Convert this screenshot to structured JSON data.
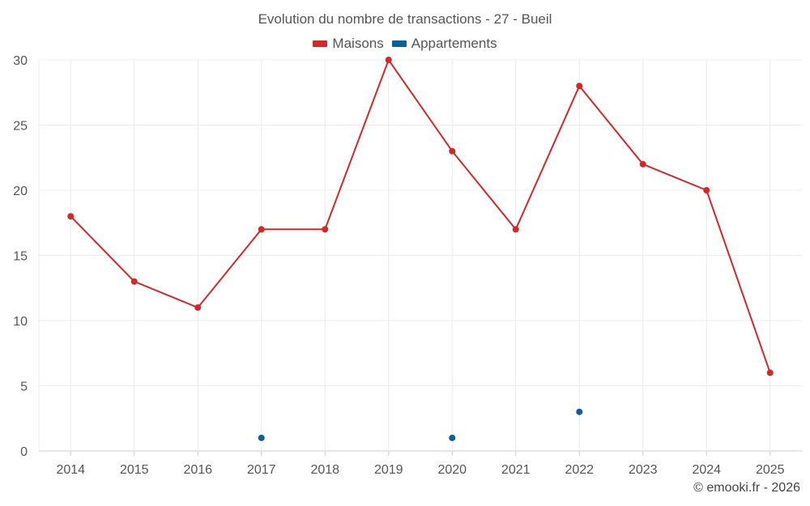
{
  "chart_data": {
    "type": "line",
    "title": "Evolution du nombre de transactions - 27 - Bueil",
    "categories": [
      "2014",
      "2015",
      "2016",
      "2017",
      "2018",
      "2019",
      "2020",
      "2021",
      "2022",
      "2023",
      "2024",
      "2025"
    ],
    "ylim": [
      0,
      30
    ],
    "yticks": [
      0,
      5,
      10,
      15,
      20,
      25,
      30
    ],
    "grid": true,
    "legend_position": "top-center",
    "series": [
      {
        "name": "Maisons",
        "color": "#d62728",
        "style": "line",
        "values": [
          18,
          13,
          11,
          17,
          17,
          30,
          23,
          17,
          28,
          22,
          20,
          6
        ]
      },
      {
        "name": "Appartements",
        "color": "#0a5f9e",
        "style": "points",
        "values": [
          null,
          null,
          null,
          1,
          null,
          null,
          1,
          null,
          3,
          null,
          null,
          null
        ]
      }
    ]
  },
  "footer": {
    "credit": "© emooki.fr - 2026"
  }
}
